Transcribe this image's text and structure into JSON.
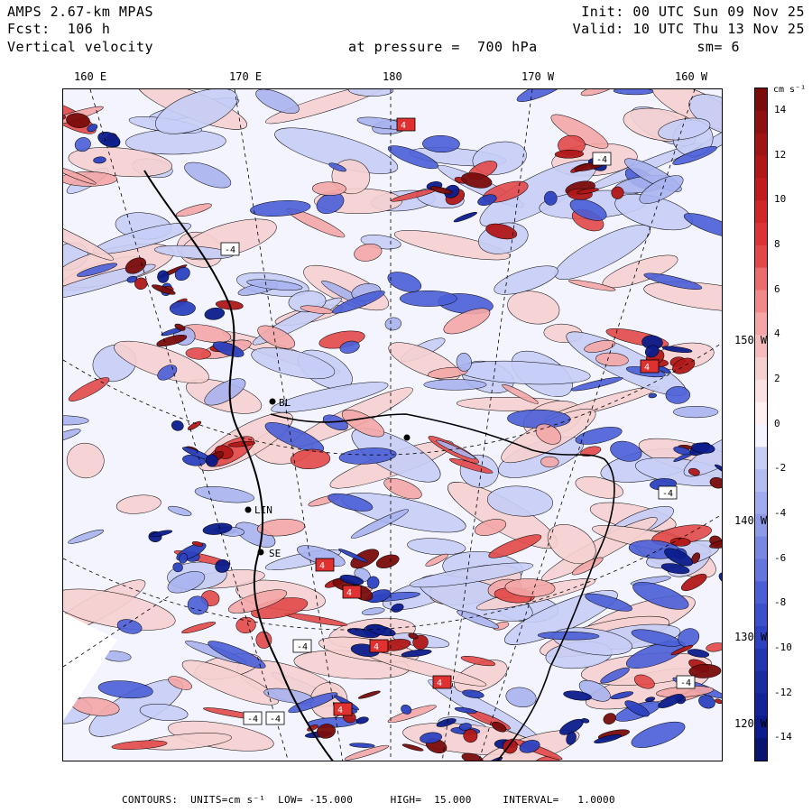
{
  "header": {
    "model": "AMPS 2.67-km MPAS",
    "forecast": "Fcst:  106 h",
    "field": "Vertical velocity",
    "level": "at pressure =  700 hPa",
    "init": "Init: 00 UTC Sun 09 Nov 25",
    "valid": "Valid: 10 UTC Thu 13 Nov 25",
    "smoothing": "sm= 6"
  },
  "longitude_labels": [
    "160 E",
    "170 E",
    "180",
    "170 W",
    "160 W"
  ],
  "latitude_labels": [
    "150 W",
    "140 W",
    "130 W",
    "120 W"
  ],
  "station_labels": [
    "BL",
    "LIN",
    "SE"
  ],
  "contour_box_labels": [
    "-4",
    "4"
  ],
  "colorbar": {
    "units": "cm s⁻¹",
    "tick_labels": [
      "14",
      "12",
      "10",
      "8",
      "6",
      "4",
      "2",
      "0",
      "-2",
      "-4",
      "-6",
      "-8",
      "-10",
      "-12",
      "-14"
    ],
    "levels": [
      -15,
      -14,
      -13,
      -12,
      -11,
      -10,
      -9,
      -8,
      -7,
      -6,
      -5,
      -4,
      -3,
      -2,
      -1,
      0,
      1,
      2,
      3,
      4,
      5,
      6,
      7,
      8,
      9,
      10,
      11,
      12,
      13,
      14,
      15
    ]
  },
  "footer": {
    "text": "CONTOURS:  UNITS=cm s⁻¹  LOW= -15.000      HIGH=  15.000     INTERVAL=   1.0000"
  },
  "colors": {
    "neg_dark": "#0c1c8c",
    "neg_mid": "#4a5ed6",
    "neg_light": "#c6cdf6",
    "zero": "#f4f4ff",
    "pos_light": "#f6d0d0",
    "pos_mid": "#e24848",
    "pos_dark": "#7a0c0c"
  }
}
